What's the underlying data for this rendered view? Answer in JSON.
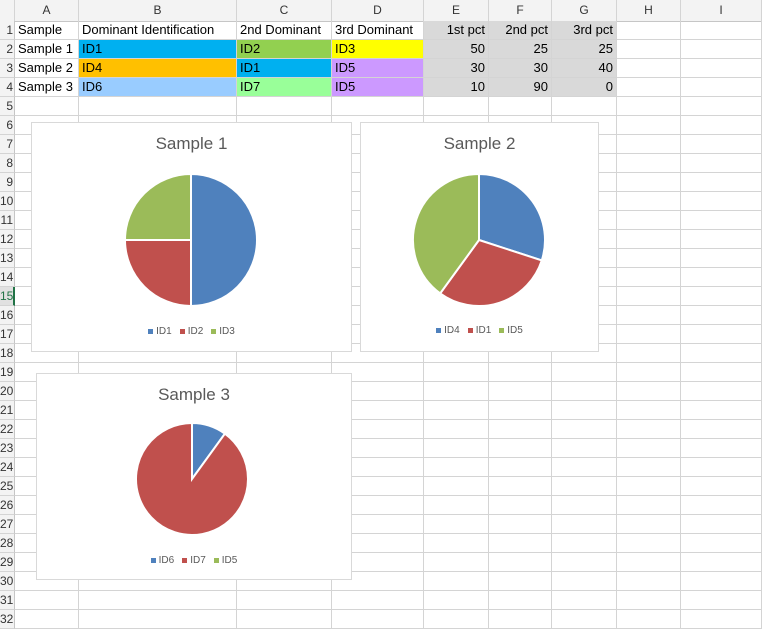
{
  "columns": [
    "A",
    "B",
    "C",
    "D",
    "E",
    "F",
    "G",
    "H",
    "I"
  ],
  "rows": [
    "1",
    "2",
    "3",
    "4",
    "5",
    "6",
    "7",
    "8",
    "9",
    "10",
    "11",
    "12",
    "13",
    "14",
    "15",
    "16",
    "17",
    "18",
    "19",
    "20",
    "21",
    "22",
    "23",
    "24",
    "25",
    "26",
    "27",
    "28",
    "29",
    "30",
    "31",
    "32"
  ],
  "active_row": "15",
  "table": {
    "headers": [
      "Sample",
      "Dominant Identification",
      "2nd Dominant",
      "3rd Dominant",
      "1st pct",
      "2nd pct",
      "3rd pct"
    ],
    "rows": [
      {
        "sample": "Sample 1",
        "dom": "ID1",
        "second": "ID2",
        "third": "ID3",
        "p1": "50",
        "p2": "25",
        "p3": "25"
      },
      {
        "sample": "Sample 2",
        "dom": "ID4",
        "second": "ID1",
        "third": "ID5",
        "p1": "30",
        "p2": "30",
        "p3": "40"
      },
      {
        "sample": "Sample 3",
        "dom": "ID6",
        "second": "ID7",
        "third": "ID5",
        "p1": "10",
        "p2": "90",
        "p3": "0"
      }
    ],
    "fills": [
      [
        "#00b0f0",
        "#92d050",
        "#ffff00"
      ],
      [
        "#ffc000",
        "#00b0f0",
        "#cc99ff"
      ],
      [
        "#99ccff",
        "#99ff99",
        "#cc99ff"
      ]
    ],
    "pct_fill": "#d9d9d9"
  },
  "series_colors": [
    "#4f81bd",
    "#c0504d",
    "#9bbb59"
  ],
  "chart_data": [
    {
      "type": "pie",
      "title": "Sample 1",
      "categories": [
        "ID1",
        "ID2",
        "ID3"
      ],
      "values": [
        50,
        25,
        25
      ],
      "legend": "bottom"
    },
    {
      "type": "pie",
      "title": "Sample 2",
      "categories": [
        "ID4",
        "ID1",
        "ID5"
      ],
      "values": [
        30,
        30,
        40
      ],
      "legend": "bottom"
    },
    {
      "type": "pie",
      "title": "Sample 3",
      "categories": [
        "ID6",
        "ID7",
        "ID5"
      ],
      "values": [
        10,
        90,
        0
      ],
      "legend": "bottom"
    }
  ]
}
